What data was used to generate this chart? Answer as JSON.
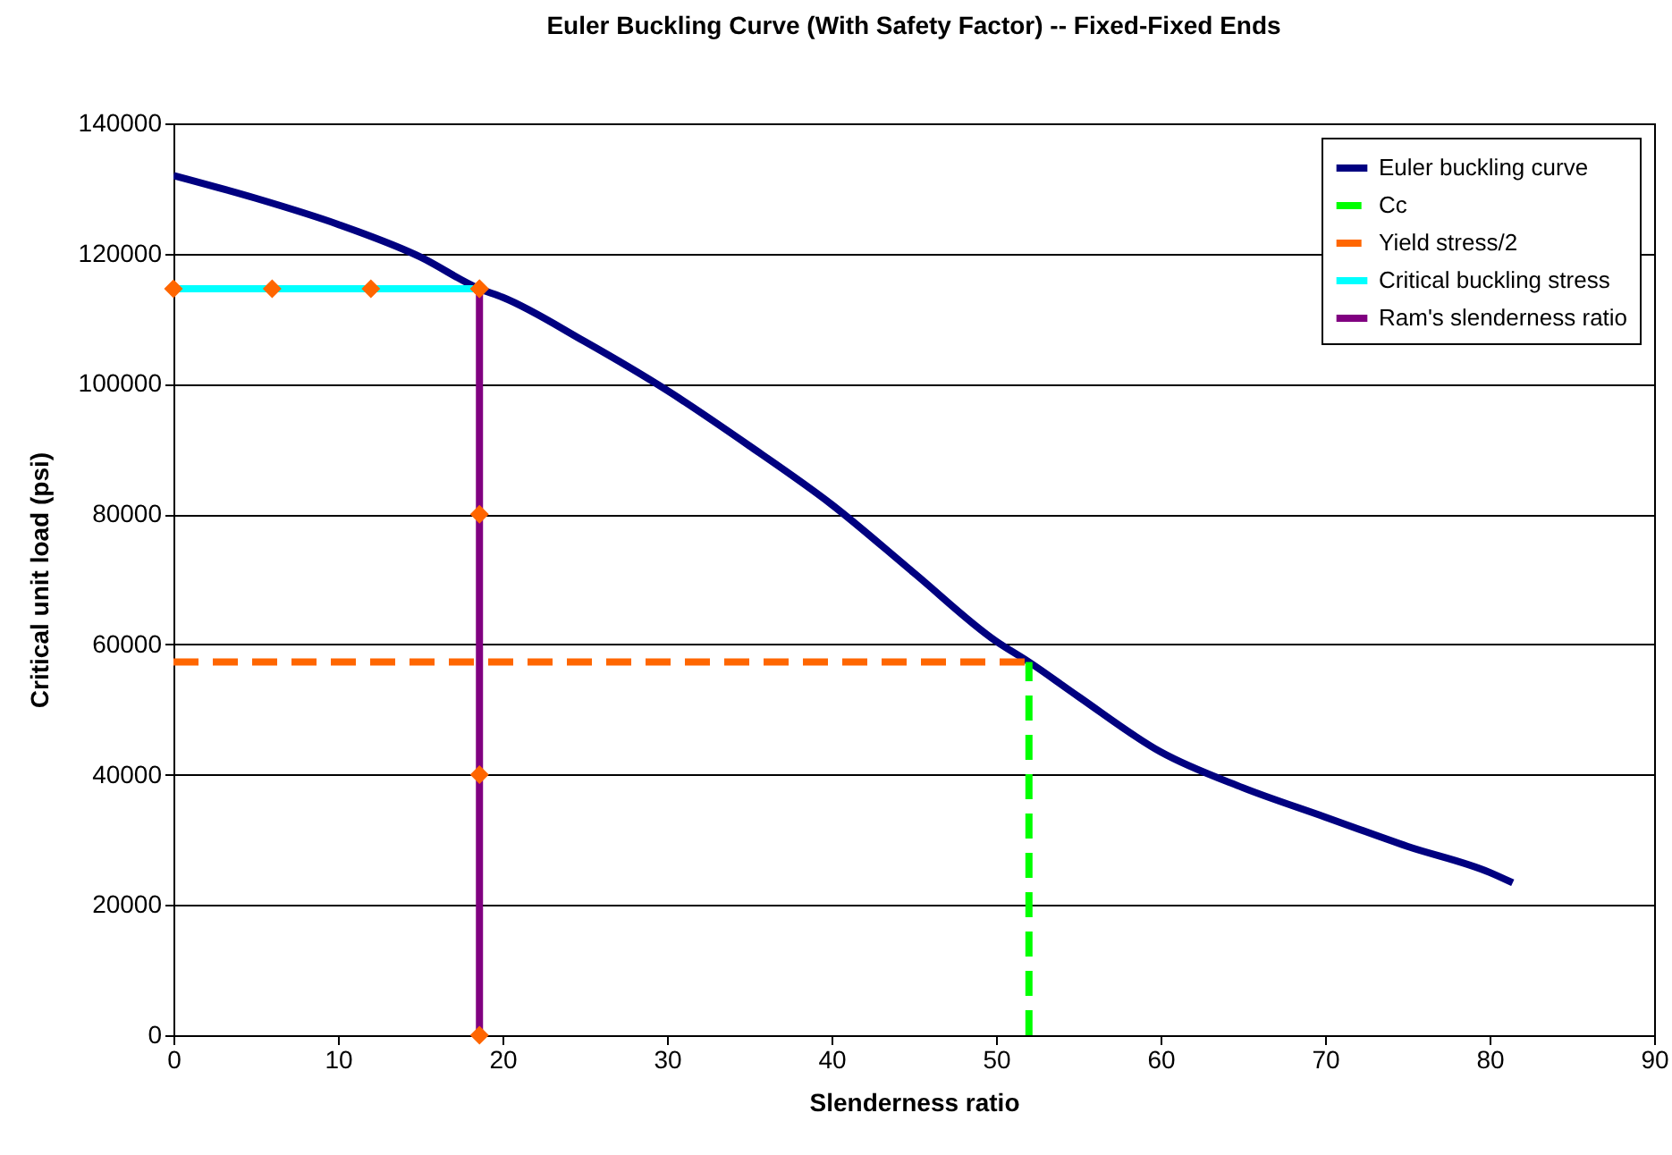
{
  "chart_data": {
    "type": "line",
    "title": "Euler Buckling Curve (With Safety Factor) -- Fixed-Fixed Ends",
    "xlabel": "Slenderness ratio",
    "ylabel": "Critical unit load (psi)",
    "xlim": [
      0,
      90
    ],
    "xticks": [
      0,
      10,
      20,
      30,
      40,
      50,
      60,
      70,
      80,
      90
    ],
    "ylim": [
      0,
      140000
    ],
    "yticks": [
      0,
      20000,
      40000,
      60000,
      80000,
      100000,
      120000,
      140000
    ],
    "grid": "y",
    "legend": "top right",
    "line_style": "solid",
    "series": [
      {
        "name": "Euler buckling curve",
        "color": "#000080",
        "x": [
          0,
          5,
          10,
          15,
          18.6,
          20,
          25,
          30,
          35,
          40,
          45,
          50,
          52,
          55,
          60,
          65,
          70,
          75,
          80,
          81.4
        ],
        "values": [
          132000,
          128500,
          124500,
          119500,
          114600,
          113300,
          106500,
          99000,
          90500,
          81500,
          71000,
          60500,
          57300,
          52000,
          43500,
          38000,
          33500,
          29000,
          25000,
          23400
        ]
      },
      {
        "name": "Cc",
        "color": "#00ff00",
        "line_style": "dashed",
        "x": [
          52,
          52
        ],
        "values": [
          0,
          57300
        ]
      },
      {
        "name": "Yield stress/2",
        "color": "#ff6600",
        "line_style": "dashed",
        "x": [
          0,
          52
        ],
        "values": [
          57300,
          57300
        ]
      },
      {
        "name": "Critical buckling stress",
        "color": "#00ffff",
        "marker": "diamond",
        "x": [
          0,
          6,
          12,
          18.6
        ],
        "values": [
          114600,
          114600,
          114600,
          114600
        ]
      },
      {
        "name": "Ram's slenderness ratio",
        "color": "#800080",
        "marker": "diamond",
        "x": [
          18.6,
          18.6,
          18.6,
          18.6
        ],
        "values": [
          0,
          40000,
          80000,
          114600
        ]
      }
    ]
  }
}
